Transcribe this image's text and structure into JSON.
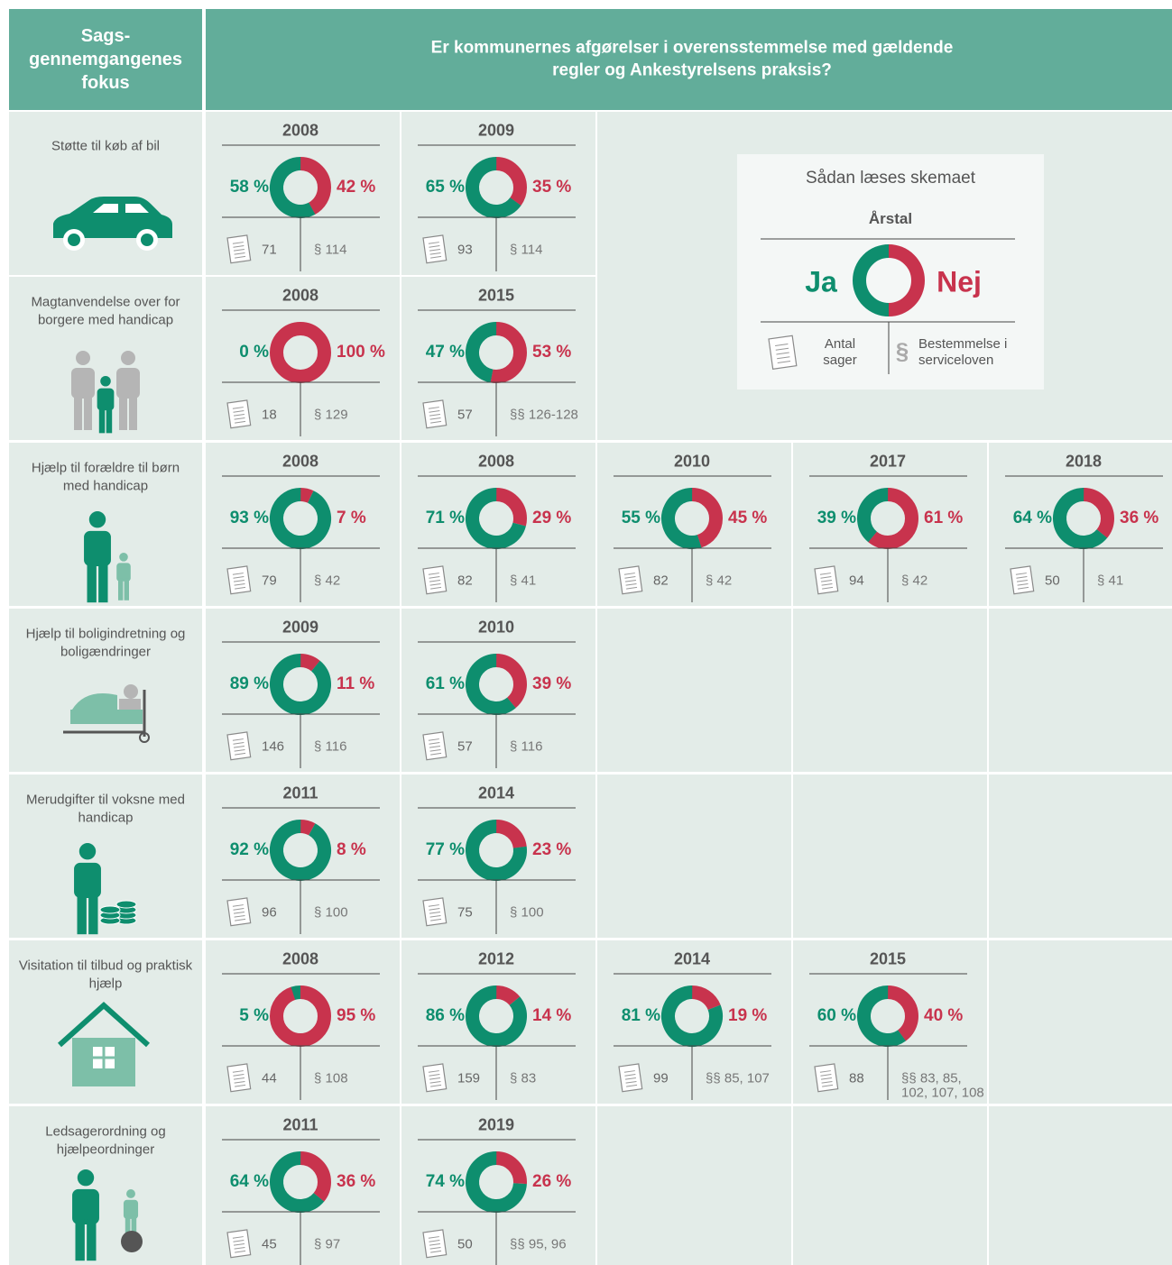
{
  "header": {
    "focus": "Sags-gennemgangenes fokus",
    "question": "Er kommunernes afgørelser i overensstemmelse med gældende regler og Ankestyrelsens praksis?"
  },
  "legend": {
    "title": "Sådan læses skemaet",
    "year": "Årstal",
    "yes": "Ja",
    "no": "Nej",
    "cases": "Antal sager",
    "paragraph_symbol": "§",
    "paragraph": "Bestemmelse i serviceloven"
  },
  "rows": [
    {
      "label": "Støtte til køb af bil",
      "panels": [
        {
          "year": 2008,
          "yes": {
            "value": 58,
            "label": "58 %"
          },
          "no": {
            "value": 42,
            "label": "42 %"
          },
          "cases": 71,
          "paragraph": "§ 114"
        },
        {
          "year": 2009,
          "yes": {
            "value": 65,
            "label": "65 %"
          },
          "no": {
            "value": 35,
            "label": "35 %"
          },
          "cases": 93,
          "paragraph": "§ 114"
        }
      ]
    },
    {
      "label": "Magtanvendelse over for borgere med handicap",
      "panels": [
        {
          "year": 2008,
          "yes": {
            "value": 0,
            "label": "0 %"
          },
          "no": {
            "value": 100,
            "label": "100 %"
          },
          "cases": 18,
          "paragraph": "§ 129"
        },
        {
          "year": 2015,
          "yes": {
            "value": 47,
            "label": "47 %"
          },
          "no": {
            "value": 53,
            "label": "53 %"
          },
          "cases": 57,
          "paragraph": "§§ 126-128"
        }
      ]
    },
    {
      "label": "Hjælp til forældre til børn med handicap",
      "panels": [
        {
          "year": 2008,
          "yes": {
            "value": 93,
            "label": "93 %"
          },
          "no": {
            "value": 7,
            "label": "7 %"
          },
          "cases": 79,
          "paragraph": "§ 42"
        },
        {
          "year": 2008,
          "yes": {
            "value": 71,
            "label": "71 %"
          },
          "no": {
            "value": 29,
            "label": "29 %"
          },
          "cases": 82,
          "paragraph": "§ 41"
        },
        {
          "year": 2010,
          "yes": {
            "value": 55,
            "label": "55 %"
          },
          "no": {
            "value": 45,
            "label": "45 %"
          },
          "cases": 82,
          "paragraph": "§ 42"
        },
        {
          "year": 2017,
          "yes": {
            "value": 39,
            "label": "39 %"
          },
          "no": {
            "value": 61,
            "label": "61 %"
          },
          "cases": 94,
          "paragraph": "§ 42"
        },
        {
          "year": 2018,
          "yes": {
            "value": 64,
            "label": "64 %"
          },
          "no": {
            "value": 36,
            "label": "36 %"
          },
          "cases": 50,
          "paragraph": "§ 41"
        }
      ]
    },
    {
      "label": "Hjælp til boligindretning og boligændringer",
      "panels": [
        {
          "year": 2009,
          "yes": {
            "value": 89,
            "label": "89 %"
          },
          "no": {
            "value": 11,
            "label": "11 %"
          },
          "cases": 146,
          "paragraph": "§ 116"
        },
        {
          "year": 2010,
          "yes": {
            "value": 61,
            "label": "61 %"
          },
          "no": {
            "value": 39,
            "label": "39 %"
          },
          "cases": 57,
          "paragraph": "§ 116"
        }
      ]
    },
    {
      "label": "Merudgifter til voksne med handicap",
      "panels": [
        {
          "year": 2011,
          "yes": {
            "value": 92,
            "label": "92 %"
          },
          "no": {
            "value": 8,
            "label": "8 %"
          },
          "cases": 96,
          "paragraph": "§ 100"
        },
        {
          "year": 2014,
          "yes": {
            "value": 77,
            "label": "77 %"
          },
          "no": {
            "value": 23,
            "label": "23 %"
          },
          "cases": 75,
          "paragraph": "§ 100"
        }
      ]
    },
    {
      "label": "Visitation til tilbud og praktisk hjælp",
      "panels": [
        {
          "year": 2008,
          "yes": {
            "value": 5,
            "label": "5 %"
          },
          "no": {
            "value": 95,
            "label": "95 %"
          },
          "cases": 44,
          "paragraph": "§ 108"
        },
        {
          "year": 2012,
          "yes": {
            "value": 86,
            "label": "86 %"
          },
          "no": {
            "value": 14,
            "label": "14 %"
          },
          "cases": 159,
          "paragraph": "§ 83"
        },
        {
          "year": 2014,
          "yes": {
            "value": 81,
            "label": "81 %"
          },
          "no": {
            "value": 19,
            "label": "19 %"
          },
          "cases": 99,
          "paragraph": "§§ 85, 107"
        },
        {
          "year": 2015,
          "yes": {
            "value": 60,
            "label": "60 %"
          },
          "no": {
            "value": 40,
            "label": "40 %"
          },
          "cases": 88,
          "paragraph": "§§ 83, 85, 102, 107, 108"
        }
      ]
    },
    {
      "label": "Ledsagerordning og hjælpeordninger",
      "panels": [
        {
          "year": 2011,
          "yes": {
            "value": 64,
            "label": "64 %"
          },
          "no": {
            "value": 36,
            "label": "36 %"
          },
          "cases": 45,
          "paragraph": "§ 97"
        },
        {
          "year": 2019,
          "yes": {
            "value": 74,
            "label": "74 %"
          },
          "no": {
            "value": 26,
            "label": "26 %"
          },
          "cases": 50,
          "paragraph": "§§ 95, 96"
        }
      ]
    }
  ]
}
